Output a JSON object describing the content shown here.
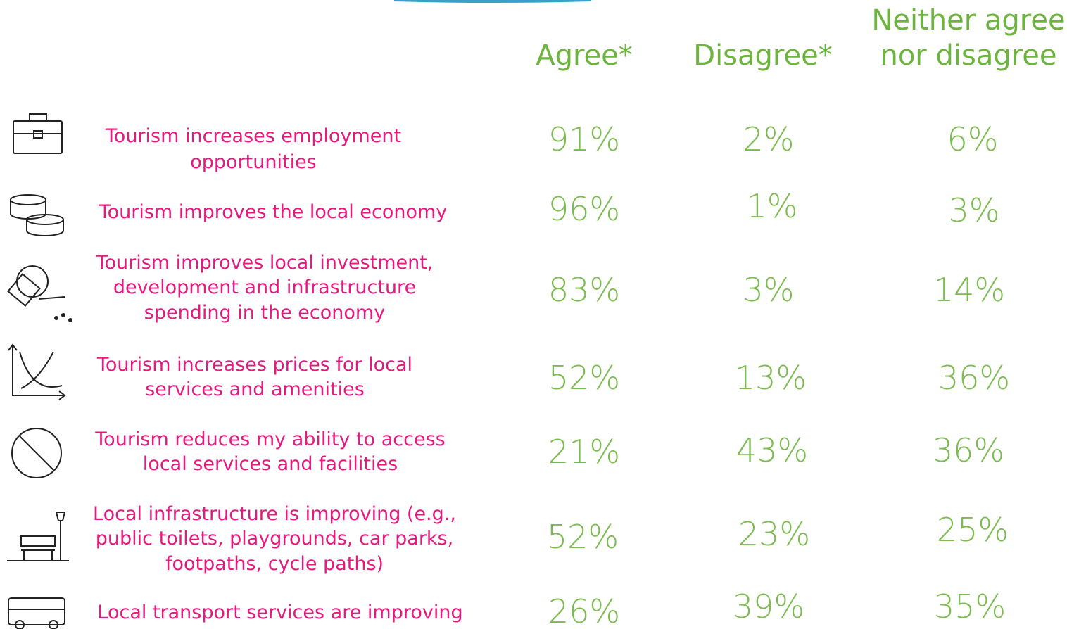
{
  "header": {
    "columns": [
      [
        "Agree*"
      ],
      [
        "Disagree*"
      ],
      [
        "Neither agree",
        "nor disagree"
      ]
    ]
  },
  "rows": [
    {
      "statement": [
        "Tourism increases employment",
        "opportunities"
      ],
      "values": [
        "91%",
        "2%",
        "6%"
      ]
    },
    {
      "statement": [
        "Tourism improves the local economy"
      ],
      "values": [
        "96%",
        "1%",
        "3%"
      ]
    },
    {
      "statement": [
        "Tourism improves local investment,",
        "development and infrastructure",
        "spending in the economy"
      ],
      "values": [
        "83%",
        "3%",
        "14%"
      ]
    },
    {
      "statement": [
        "Tourism increases prices for local",
        "services and amenities"
      ],
      "values": [
        "52%",
        "13%",
        "36%"
      ]
    },
    {
      "statement": [
        "Tourism reduces my ability to access",
        "local services and facilities"
      ],
      "values": [
        "21%",
        "43%",
        "36%"
      ]
    },
    {
      "statement": [
        "Local infrastructure is improving (e.g.,",
        "public toilets, playgrounds, car parks,",
        "footpaths, cycle paths)"
      ],
      "values": [
        "52%",
        "23%",
        "25%"
      ]
    },
    {
      "statement": [
        "Local transport services are improving"
      ],
      "values": [
        "26%",
        "39%",
        "35%"
      ]
    }
  ]
}
